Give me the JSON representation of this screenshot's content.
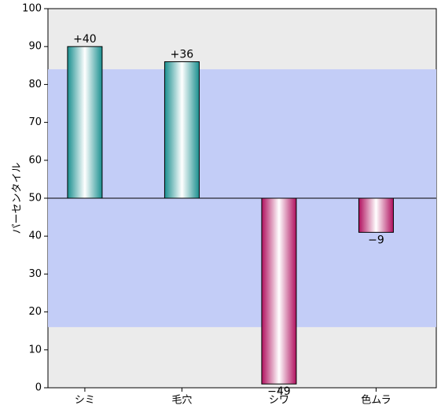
{
  "chart_data": {
    "type": "bar",
    "y_label": "パーセンタイル",
    "categories": [
      "シミ",
      "毛穴",
      "シワ",
      "色ムラ"
    ],
    "baseline": 50,
    "values": [
      40,
      36,
      -49,
      -9
    ],
    "value_labels": [
      "+40",
      "+36",
      "−49",
      "−9"
    ],
    "positive_colors": [
      "#1a8f8f",
      "#ffffff"
    ],
    "negative_colors": [
      "#b0105e",
      "#ffffff"
    ],
    "normal_band": [
      16,
      84
    ],
    "band_color": "#c3cdf7",
    "ylim": [
      0,
      100
    ],
    "yticks": [
      0,
      10,
      20,
      30,
      40,
      50,
      60,
      70,
      80,
      90,
      100
    ]
  }
}
